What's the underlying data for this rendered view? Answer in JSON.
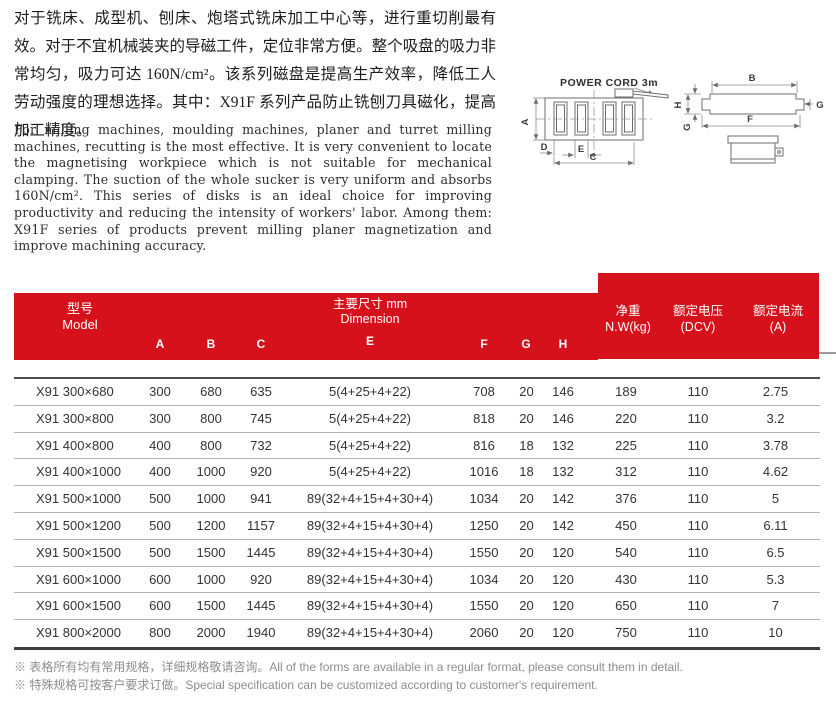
{
  "colors": {
    "accent_red": "#d7111b",
    "table_line": "#b3b3b3"
  },
  "intro": {
    "cn": "对于铣床、成型机、刨床、炮塔式铣床加工中心等，进行重切削最有效。对于不宜机械装夹的导磁工件，定位非常方便。整个吸盘的吸力非常均匀，吸力可达 160N/cm²。该系列磁盘是提高生产效率，降低工人劳动强度的理想选择。其中：X91F 系列产品防止铣刨刀具磁化，提高加工精度。",
    "en": "For milling machines, moulding machines, planer and turret milling machines, recutting is the most effective. It is very convenient to locate the magnetising workpiece which is not suitable for mechanical clamping. The suction of the whole sucker is very uniform and absorbs 160N/cm². This series of disks is an ideal choice for improving productivity and reducing the intensity of workers' labor. Among them: X91F series of products prevent milling planer magnetization and improve machining accuracy."
  },
  "diagram": {
    "power_cord": "POWER CORD 3m",
    "labels": {
      "a": "A",
      "b": "B",
      "c": "C",
      "d": "D",
      "e": "E",
      "f": "F",
      "g_left": "G",
      "g_right": "G",
      "h": "H"
    }
  },
  "table": {
    "header": {
      "model_cn": "型号",
      "model_en": "Model",
      "dimension_cn": "主要尺寸 mm",
      "dimension_en": "Dimension",
      "sub_columns": [
        "A",
        "B",
        "C",
        "E",
        "F",
        "G",
        "H"
      ],
      "net_weight_cn": "净重",
      "net_weight_en": "N.W(kg)",
      "voltage_cn": "额定电压",
      "voltage_en": "(DCV)",
      "current_cn": "额定电流",
      "current_en": "(A)"
    },
    "rows": [
      {
        "model": "X91 300×680",
        "a": "300",
        "b": "680",
        "c": "635",
        "e": "5(4+25+4+22)",
        "f": "708",
        "g": "20",
        "h": "146",
        "nw": "189",
        "volt": "110",
        "amp": "2.75"
      },
      {
        "model": "X91 300×800",
        "a": "300",
        "b": "800",
        "c": "745",
        "e": "5(4+25+4+22)",
        "f": "818",
        "g": "20",
        "h": "146",
        "nw": "220",
        "volt": "110",
        "amp": "3.2"
      },
      {
        "model": "X91 400×800",
        "a": "400",
        "b": "800",
        "c": "732",
        "e": "5(4+25+4+22)",
        "f": "816",
        "g": "18",
        "h": "132",
        "nw": "225",
        "volt": "110",
        "amp": "3.78"
      },
      {
        "model": "X91 400×1000",
        "a": "400",
        "b": "1000",
        "c": "920",
        "e": "5(4+25+4+22)",
        "f": "1016",
        "g": "18",
        "h": "132",
        "nw": "312",
        "volt": "110",
        "amp": "4.62"
      },
      {
        "model": "X91 500×1000",
        "a": "500",
        "b": "1000",
        "c": "941",
        "e": "89(32+4+15+4+30+4)",
        "f": "1034",
        "g": "20",
        "h": "142",
        "nw": "376",
        "volt": "110",
        "amp": "5"
      },
      {
        "model": "X91 500×1200",
        "a": "500",
        "b": "1200",
        "c": "1157",
        "e": "89(32+4+15+4+30+4)",
        "f": "1250",
        "g": "20",
        "h": "142",
        "nw": "450",
        "volt": "110",
        "amp": "6.11"
      },
      {
        "model": "X91 500×1500",
        "a": "500",
        "b": "1500",
        "c": "1445",
        "e": "89(32+4+15+4+30+4)",
        "f": "1550",
        "g": "20",
        "h": "120",
        "nw": "540",
        "volt": "110",
        "amp": "6.5"
      },
      {
        "model": "X91 600×1000",
        "a": "600",
        "b": "1000",
        "c": "920",
        "e": "89(32+4+15+4+30+4)",
        "f": "1034",
        "g": "20",
        "h": "120",
        "nw": "430",
        "volt": "110",
        "amp": "5.3"
      },
      {
        "model": "X91 600×1500",
        "a": "600",
        "b": "1500",
        "c": "1445",
        "e": "89(32+4+15+4+30+4)",
        "f": "1550",
        "g": "20",
        "h": "120",
        "nw": "650",
        "volt": "110",
        "amp": "7"
      },
      {
        "model": "X91 800×2000",
        "a": "800",
        "b": "2000",
        "c": "1940",
        "e": "89(32+4+15+4+30+4)",
        "f": "2060",
        "g": "20",
        "h": "120",
        "nw": "750",
        "volt": "110",
        "amp": "10"
      }
    ]
  },
  "notes": [
    "※ 表格所有均有常用规格，详细规格敬请咨询。All of the forms are available in a regular format, please consult them in detail.",
    "※ 特殊规格可按客户要求订做。Special specification can be customized according to customer's requirement."
  ]
}
